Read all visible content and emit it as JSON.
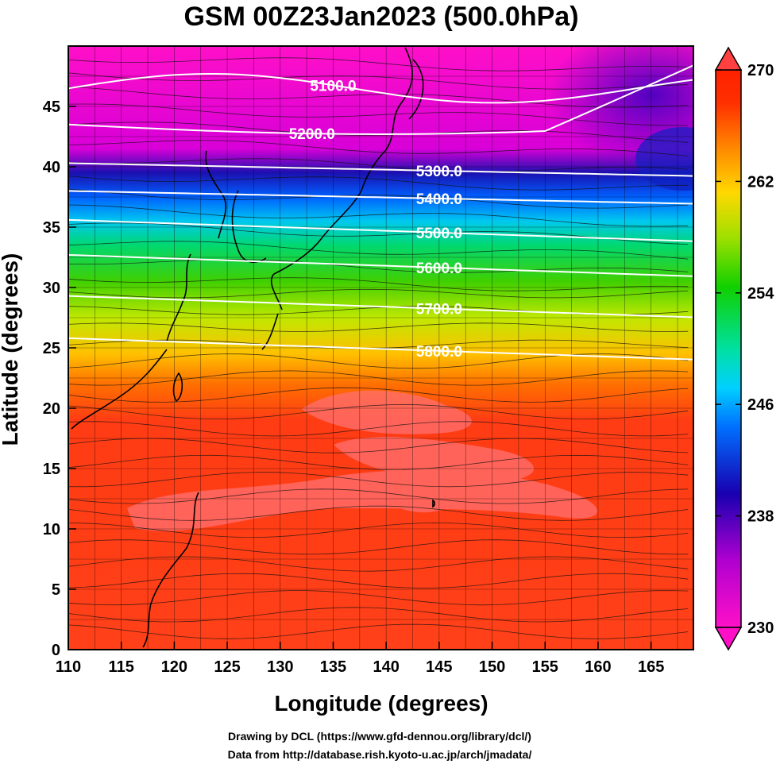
{
  "title": "GSM 00Z23Jan2023 (500.0hPa)",
  "xaxis": {
    "label": "Longitude (degrees)",
    "ticks": [
      "110",
      "115",
      "120",
      "125",
      "130",
      "135",
      "140",
      "145",
      "150",
      "155",
      "160",
      "165"
    ],
    "range": [
      110,
      169
    ]
  },
  "yaxis": {
    "label": "Latitude  (degrees)",
    "ticks": [
      "0",
      "5",
      "10",
      "15",
      "20",
      "25",
      "30",
      "35",
      "40",
      "45"
    ],
    "range": [
      0,
      50
    ]
  },
  "colorbar": {
    "ticks": [
      "230",
      "238",
      "246",
      "254",
      "262",
      "270"
    ],
    "range": [
      230,
      270
    ],
    "colors": [
      "#ff00cc",
      "#9900cc",
      "#0000cc",
      "#0077ff",
      "#00ccff",
      "#00e0a0",
      "#00d000",
      "#90e000",
      "#ffe000",
      "#ffa000",
      "#ff5a00",
      "#ff2000",
      "#ff4040"
    ]
  },
  "contours": [
    {
      "label": "5100.0",
      "lat": 46.5
    },
    {
      "label": "5200.0",
      "lat": 43.5
    },
    {
      "label": "5300.0",
      "lat": 40.3
    },
    {
      "label": "5400.0",
      "lat": 38.0
    },
    {
      "label": "5500.0",
      "lat": 35.6
    },
    {
      "label": "5600.0",
      "lat": 32.7
    },
    {
      "label": "5700.0",
      "lat": 29.3
    },
    {
      "label": "5800.0",
      "lat": 25.8
    }
  ],
  "credits": {
    "line1": "Drawing by DCL (https://www.gfd-dennou.org/library/dcl/)",
    "line2": "Data from http://database.rish.kyoto-u.ac.jp/arch/jmadata/"
  }
}
